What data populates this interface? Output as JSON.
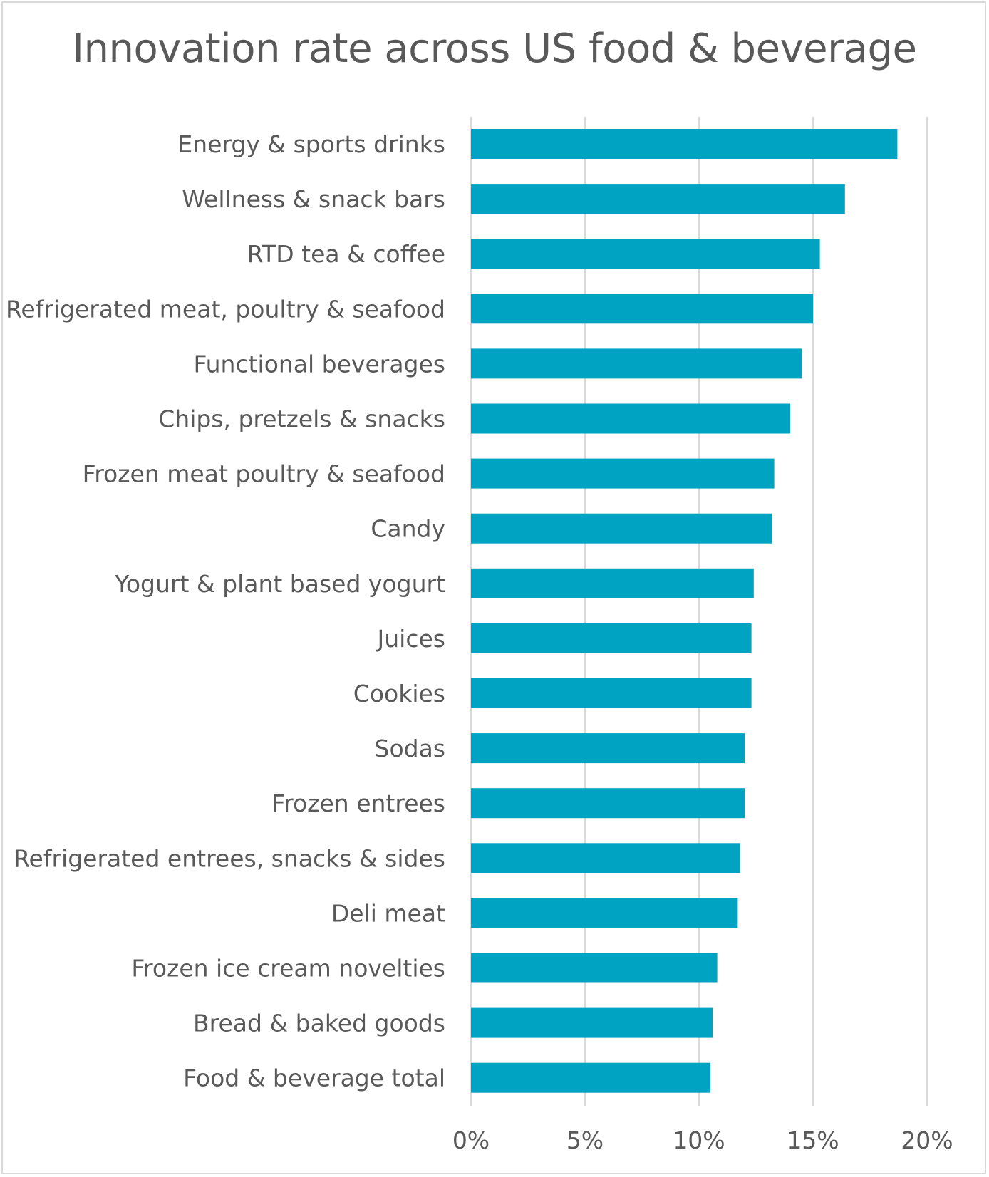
{
  "chart_data": {
    "type": "bar",
    "orientation": "horizontal",
    "title": "Innovation rate across US food & beverage",
    "xlabel": "",
    "ylabel": "",
    "categories": [
      "Energy & sports drinks",
      "Wellness & snack bars",
      "RTD tea & coffee",
      "Refrigerated meat, poultry & seafood",
      "Functional beverages",
      "Chips, pretzels & snacks",
      "Frozen meat poultry & seafood",
      "Candy",
      "Yogurt & plant based yogurt",
      "Juices",
      "Cookies",
      "Sodas",
      "Frozen entrees",
      "Refrigerated entrees, snacks & sides",
      "Deli meat",
      "Frozen ice cream novelties",
      "Bread & baked goods",
      "Food & beverage total"
    ],
    "values": [
      18.7,
      16.4,
      15.3,
      15.0,
      14.5,
      14.0,
      13.3,
      13.2,
      12.4,
      12.3,
      12.3,
      12.0,
      12.0,
      11.8,
      11.7,
      10.8,
      10.6,
      10.5
    ],
    "xlim": [
      0,
      20
    ],
    "ticks": [
      0,
      5,
      10,
      15,
      20
    ],
    "tick_labels": [
      "0%",
      "5%",
      "10%",
      "15%",
      "20%"
    ],
    "grid": true,
    "legend": "none",
    "bar_color": "#00A3C1",
    "grid_color": "#d9d9d9"
  }
}
